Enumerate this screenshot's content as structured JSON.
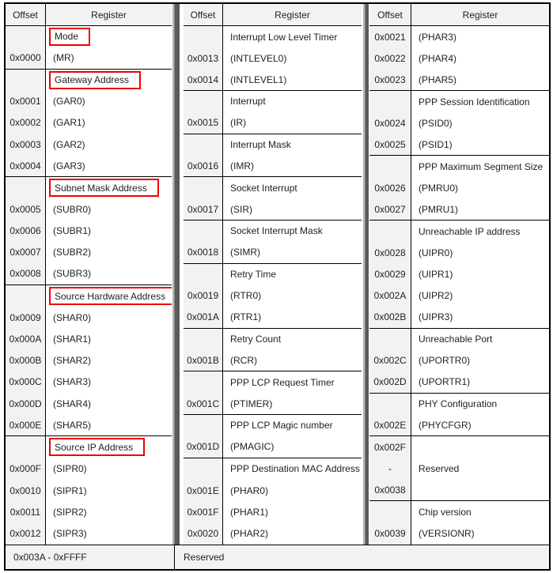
{
  "colors": {
    "border": "#000000",
    "header_bg": "#f2f2f2",
    "offset_bg": "#f2f2f2",
    "cell_bg": "#ffffff",
    "footer_bg": "#f2f2f2",
    "highlight_box": "#f00000",
    "separator": "#5c5c5c",
    "text": "#1f1f1f"
  },
  "tables": [
    {
      "header": {
        "offset": "Offset",
        "register": "Register"
      },
      "blocks": [
        {
          "label": "Mode",
          "boxed": true,
          "rows": [
            [
              "0x0000",
              "(MR)"
            ]
          ]
        },
        {
          "label": "Gateway Address",
          "boxed": true,
          "rows": [
            [
              "0x0001",
              "(GAR0)"
            ],
            [
              "0x0002",
              "(GAR1)"
            ],
            [
              "0x0003",
              "(GAR2)"
            ],
            [
              "0x0004",
              "(GAR3)"
            ]
          ]
        },
        {
          "label": "Subnet Mask Address",
          "boxed": true,
          "rows": [
            [
              "0x0005",
              "(SUBR0)"
            ],
            [
              "0x0006",
              "(SUBR1)"
            ],
            [
              "0x0007",
              "(SUBR2)"
            ],
            [
              "0x0008",
              "(SUBR3)"
            ]
          ]
        },
        {
          "label": "Source Hardware Address",
          "boxed": true,
          "rows": [
            [
              "0x0009",
              "(SHAR0)"
            ],
            [
              "0x000A",
              "(SHAR1)"
            ],
            [
              "0x000B",
              "(SHAR2)"
            ],
            [
              "0x000C",
              "(SHAR3)"
            ],
            [
              "0x000D",
              "(SHAR4)"
            ],
            [
              "0x000E",
              "(SHAR5)"
            ]
          ]
        },
        {
          "label": "Source IP Address",
          "boxed": true,
          "rows": [
            [
              "0x000F",
              "(SIPR0)"
            ],
            [
              "0x0010",
              "(SIPR1)"
            ],
            [
              "0x0011",
              "(SIPR2)"
            ],
            [
              "0x0012",
              "(SIPR3)"
            ]
          ]
        }
      ]
    },
    {
      "header": {
        "offset": "Offset",
        "register": "Register"
      },
      "blocks": [
        {
          "label": "Interrupt Low Level Timer",
          "boxed": false,
          "rows": [
            [
              "0x0013",
              "(INTLEVEL0)"
            ],
            [
              "0x0014",
              "(INTLEVEL1)"
            ]
          ]
        },
        {
          "label": "Interrupt",
          "boxed": false,
          "rows": [
            [
              "0x0015",
              "(IR)"
            ]
          ]
        },
        {
          "label": "Interrupt Mask",
          "boxed": false,
          "rows": [
            [
              "0x0016",
              "(IMR)"
            ]
          ]
        },
        {
          "label": "Socket Interrupt",
          "boxed": false,
          "rows": [
            [
              "0x0017",
              "(SIR)"
            ]
          ]
        },
        {
          "label": "Socket Interrupt Mask",
          "boxed": false,
          "rows": [
            [
              "0x0018",
              "(SIMR)"
            ]
          ]
        },
        {
          "label": "Retry Time",
          "boxed": false,
          "rows": [
            [
              "0x0019",
              "(RTR0)"
            ],
            [
              "0x001A",
              "(RTR1)"
            ]
          ]
        },
        {
          "label": "Retry Count",
          "boxed": false,
          "rows": [
            [
              "0x001B",
              "(RCR)"
            ]
          ]
        },
        {
          "label": "PPP LCP Request Timer",
          "boxed": false,
          "rows": [
            [
              "0x001C",
              "(PTIMER)"
            ]
          ]
        },
        {
          "label": "PPP LCP Magic number",
          "boxed": false,
          "rows": [
            [
              "0x001D",
              "(PMAGIC)"
            ]
          ]
        },
        {
          "label": "PPP Destination MAC Address",
          "boxed": false,
          "rows": [
            [
              "0x001E",
              "(PHAR0)"
            ],
            [
              "0x001F",
              "(PHAR1)"
            ],
            [
              "0x0020",
              "(PHAR2)"
            ]
          ]
        }
      ]
    },
    {
      "header": {
        "offset": "Offset",
        "register": "Register"
      },
      "blocks": [
        {
          "label": null,
          "boxed": false,
          "rows": [
            [
              "0x0021",
              "(PHAR3)"
            ],
            [
              "0x0022",
              "(PHAR4)"
            ],
            [
              "0x0023",
              "(PHAR5)"
            ]
          ]
        },
        {
          "label": "PPP Session Identification",
          "boxed": false,
          "rows": [
            [
              "0x0024",
              "(PSID0)"
            ],
            [
              "0x0025",
              "(PSID1)"
            ]
          ]
        },
        {
          "label": "PPP Maximum Segment Size",
          "boxed": false,
          "rows": [
            [
              "0x0026",
              "(PMRU0)"
            ],
            [
              "0x0027",
              "(PMRU1)"
            ]
          ]
        },
        {
          "label": "Unreachable IP address",
          "boxed": false,
          "rows": [
            [
              "0x0028",
              "(UIPR0)"
            ],
            [
              "0x0029",
              "(UIPR1)"
            ],
            [
              "0x002A",
              "(UIPR2)"
            ],
            [
              "0x002B",
              "(UIPR3)"
            ]
          ]
        },
        {
          "label": "Unreachable Port",
          "boxed": false,
          "rows": [
            [
              "0x002C",
              "(UPORTR0)"
            ],
            [
              "0x002D",
              "(UPORTR1)"
            ]
          ]
        },
        {
          "label": "PHY Configuration",
          "boxed": false,
          "rows": [
            [
              "0x002E",
              "(PHYCFGR)"
            ]
          ]
        },
        {
          "special": "span",
          "offset_lines": [
            "0x002F",
            "-",
            "0x0038"
          ],
          "register": "Reserved"
        },
        {
          "label": "Chip version",
          "boxed": false,
          "rows": [
            [
              "0x0039",
              "(VERSIONR)"
            ]
          ]
        }
      ]
    }
  ],
  "footer": {
    "offset_range": "0x003A - 0xFFFF",
    "register_label": "Reserved"
  }
}
